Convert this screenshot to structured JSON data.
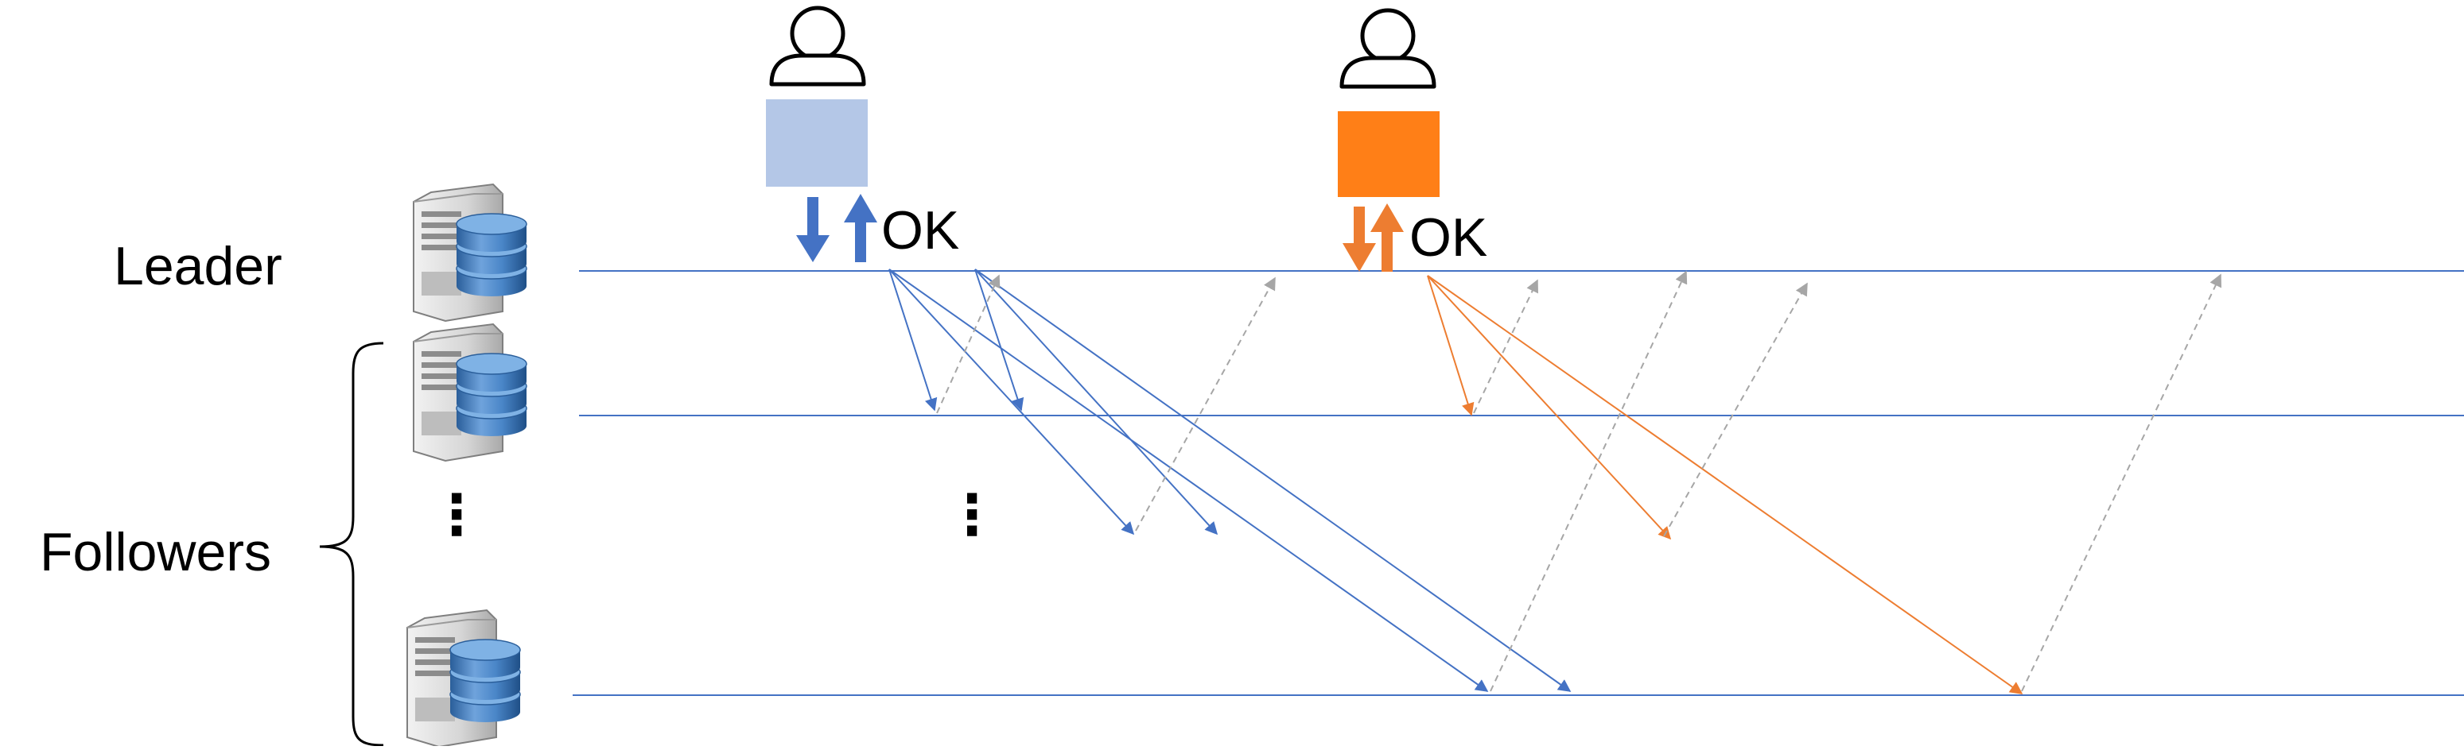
{
  "labels": {
    "leader": "Leader",
    "followers": "Followers",
    "ok_left": "OK",
    "ok_right": "OK",
    "ellipsis_servers": "⋮",
    "ellipsis_messages": "⋮"
  },
  "icons": {
    "client": "user-icon",
    "server": "database-server-icon"
  },
  "colors": {
    "timeline": "#4472C4",
    "client_left_box": "#B4C7E7",
    "client_right_box": "#FF7F17",
    "message_blue": "#4472C4",
    "message_orange": "#ED7D31",
    "ack_gray": "#A6A6A6"
  }
}
